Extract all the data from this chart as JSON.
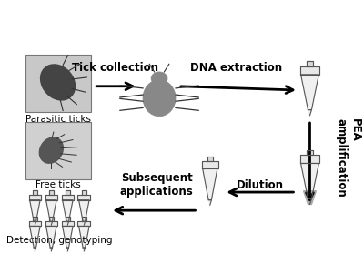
{
  "background_color": "#ffffff",
  "figsize": [
    4.0,
    2.9
  ],
  "dpi": 100,
  "labels": {
    "parasitic_ticks": "Parasitic ticks",
    "free_ticks": "Free ticks",
    "tick_collection": "Tick collection",
    "dna_extraction": "DNA extraction",
    "pea_amplification": "PEA\namplification",
    "dilution": "Dilution",
    "subsequent_applications": "Subsequent\napplications",
    "detection_genotyping": "Detection, genotyping"
  },
  "text_color": "#000000",
  "arrow_color": "#000000",
  "arrow_linewidth": 2.0,
  "label_fontsize": 7.5,
  "step_label_fontsize": 8.5
}
